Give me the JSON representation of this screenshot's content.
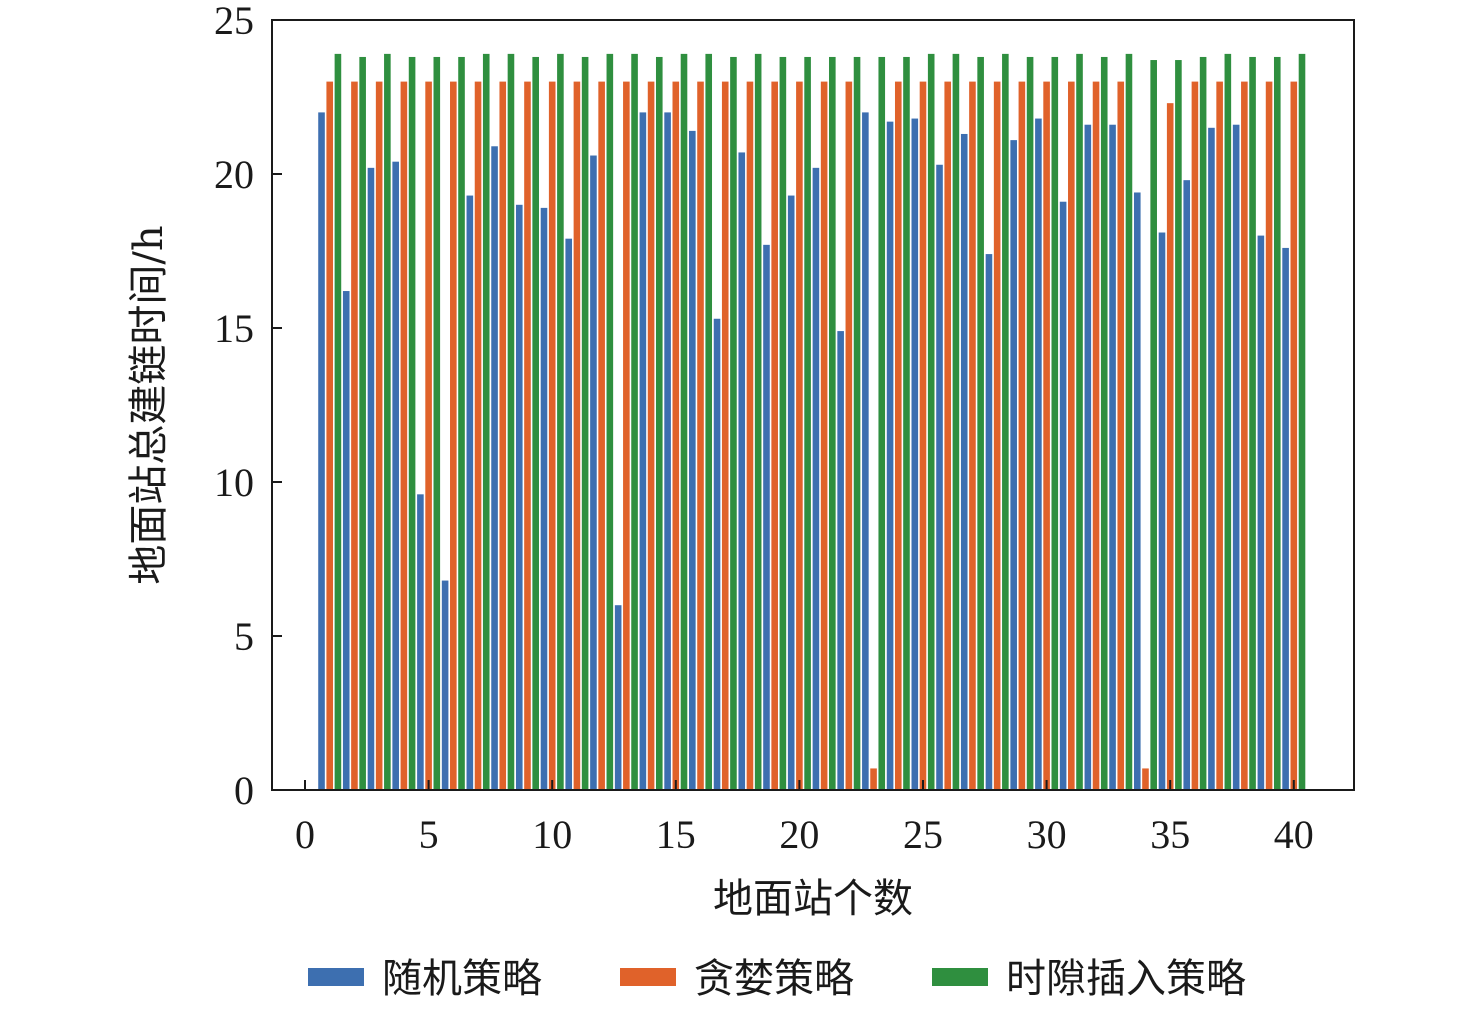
{
  "chart_data": {
    "type": "bar",
    "xlabel": "地面站个数",
    "ylabel": "地面站总建链时间/h",
    "xlim": [
      0,
      42
    ],
    "ylim": [
      0,
      25
    ],
    "xticks": [
      0,
      5,
      10,
      15,
      20,
      25,
      30,
      35,
      40
    ],
    "yticks": [
      0,
      5,
      10,
      15,
      20,
      25
    ],
    "grid": false,
    "legend_position": "bottom",
    "categories": [
      1,
      2,
      3,
      4,
      5,
      6,
      7,
      8,
      9,
      10,
      11,
      12,
      13,
      14,
      15,
      16,
      17,
      18,
      19,
      20,
      21,
      22,
      23,
      24,
      25,
      26,
      27,
      28,
      29,
      30,
      31,
      32,
      33,
      34,
      35,
      36,
      37,
      38,
      39,
      40
    ],
    "series": [
      {
        "name": "随机策略",
        "color": "#3d6fb0",
        "values": [
          22.0,
          16.2,
          20.2,
          20.4,
          9.6,
          6.8,
          19.3,
          20.9,
          19.0,
          18.9,
          17.9,
          20.6,
          6.0,
          22.0,
          22.0,
          21.4,
          15.3,
          20.7,
          17.7,
          19.3,
          20.2,
          14.9,
          22.0,
          21.7,
          21.8,
          20.3,
          21.3,
          17.4,
          21.1,
          21.8,
          19.1,
          21.6,
          21.6,
          19.4,
          18.1,
          19.8,
          21.5,
          21.6,
          18.0,
          17.6
        ]
      },
      {
        "name": "贪婪策略",
        "color": "#e0622a",
        "values": [
          23.0,
          23.0,
          23.0,
          23.0,
          23.0,
          23.0,
          23.0,
          23.0,
          23.0,
          23.0,
          23.0,
          23.0,
          23.0,
          23.0,
          23.0,
          23.0,
          23.0,
          23.0,
          23.0,
          23.0,
          23.0,
          23.0,
          0.7,
          23.0,
          23.0,
          23.0,
          23.0,
          23.0,
          23.0,
          23.0,
          23.0,
          23.0,
          23.0,
          0.7,
          22.3,
          23.0,
          23.0,
          23.0,
          23.0,
          23.0
        ]
      },
      {
        "name": "时隙插入策略",
        "color": "#2f8f3f",
        "values": [
          23.9,
          23.8,
          23.9,
          23.8,
          23.8,
          23.8,
          23.9,
          23.9,
          23.8,
          23.9,
          23.8,
          23.9,
          23.9,
          23.8,
          23.9,
          23.9,
          23.8,
          23.9,
          23.8,
          23.8,
          23.8,
          23.8,
          23.8,
          23.8,
          23.9,
          23.9,
          23.8,
          23.9,
          23.8,
          23.8,
          23.9,
          23.8,
          23.9,
          23.7,
          23.7,
          23.8,
          23.9,
          23.8,
          23.8,
          23.9
        ]
      }
    ]
  }
}
